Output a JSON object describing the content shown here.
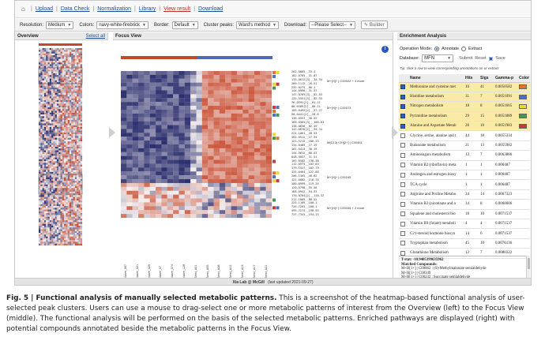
{
  "nav": {
    "home_icon": "home-icon",
    "items": [
      "Upload",
      "Data Check",
      "Normalization",
      "Library",
      "View result",
      "Download"
    ],
    "current": "View result"
  },
  "toolbar": {
    "resolution_label": "Resolution:",
    "resolution_value": "Medium",
    "colors_label": "Colors:",
    "colors_value": "navy-white-firebrick",
    "border_label": "Border:",
    "border_value": "Default",
    "cluster_label": "Cluster peaks:",
    "cluster_value": "Ward's method",
    "download_label": "Download:",
    "download_value": "--Please Select--",
    "builder_label": "Builder"
  },
  "overview": {
    "title": "Overview",
    "select_all": "Select all"
  },
  "focus": {
    "title": "Focus View",
    "condition_label": "Condition",
    "colors": {
      "navy": "#2b2f6e",
      "white": "#f4efef",
      "firebrick": "#c8472a"
    },
    "row_labels": [
      "202.0865__33.4",
      "182.0765__31.87",
      "133.0612[3]__34.34",
      "260.1112__28.51",
      "232.0275__86.1",
      "144.0996__31.57",
      "147.0769[3]__82.93",
      "132.5551[3]__82.93",
      "76.0391[2]__81.11",
      "88.0389[2]__80.11",
      "103.0492[2]__27.27",
      "90.0441[2]__28.6",
      "138.0557__30.52",
      "160.0565[3]__100.03",
      "138.0656__82.49",
      "142.0676[2]__34.34",
      "224.1001__28.53",
      "365.0512__27.94",
      "121.5212__186.23",
      "134.0489__27.19",
      "161.0413__30.19",
      "144.0612__80.53",
      "848.5057__31.51",
      "103.0582__138.38",
      "112.0573__102.63",
      "179.1527__102.79",
      "131.0464__122.88",
      "206.1365__40.82",
      "121.0882__116.75",
      "180.0999__119.24",
      "120.0798__95.56",
      "168.0942__54.53",
      "170.0764[2]__118.32",
      "211.1069__88.52",
      "223.1169__100.1",
      "726.7263__100.1",
      "495.7274__198.55",
      "727.7343__194.15"
    ],
    "annotations": [
      "M+[H]+ | C00022 + 4 more",
      "M+[H]+ | C00073",
      "M(C13)+2H[2+] | C00461",
      "M+[H]+ | C00245",
      "M+[H]+ | C00035 + 2 more"
    ],
    "sample_labels": [
      "Naive_007",
      "Naive_021",
      "Naive_025",
      "Naive_07",
      "Naive_074",
      "Naive_128",
      "Semi_A01",
      "Semi_A05",
      "Semi_A08",
      "Semi_A12",
      "Semi_A13",
      "Semi_A17",
      "Semi_A21"
    ],
    "info_icon": "info-icon"
  },
  "enrichment": {
    "title": "Enrichment Analysis",
    "mode_label": "Operation Mode:",
    "mode_annotate": "Annotate",
    "mode_extract": "Extract",
    "database_label": "Database:",
    "database_value": "MFN",
    "submit_label": "Submit",
    "reset_label": "Reset",
    "save_label": "Save",
    "tip": "Tip:  click a row to view corresponding annotations on or extract",
    "columns": [
      "Name",
      "Hits",
      "Sigs",
      "Gamma-p",
      "Color"
    ],
    "rows": [
      {
        "name": "Methionine and cysteine met",
        "hits": "16",
        "sigs": "41",
        "p": "0.0050582",
        "checked": true,
        "color": "#e8722a"
      },
      {
        "name": "Histidine metabolism",
        "hits": "11",
        "sigs": "7",
        "p": "0.0051091",
        "checked": true,
        "color": "#4a6fcb"
      },
      {
        "name": "Nitrogen metabolism",
        "hits": "18",
        "sigs": "8",
        "p": "0.0051665",
        "checked": true,
        "color": "#e6d83a"
      },
      {
        "name": "Pyrimidine metabolism",
        "hits": "29",
        "sigs": "15",
        "p": "0.0051889",
        "checked": true,
        "color": "#3f9a4c"
      },
      {
        "name": "Alanine and Aspartate Metab",
        "hits": "28",
        "sigs": "10",
        "p": "0.0051983",
        "checked": true,
        "color": "#c23a3a"
      },
      {
        "name": "Glycine, serine, alanine and t",
        "hits": "44",
        "sigs": "18",
        "p": "0.0055334",
        "checked": false,
        "color": ""
      },
      {
        "name": "Butanoate metabolism",
        "hits": "21",
        "sigs": "13",
        "p": "0.0055982",
        "checked": false,
        "color": ""
      },
      {
        "name": "Aminosugars metabolism",
        "hits": "13",
        "sigs": "7",
        "p": "0.0063886",
        "checked": false,
        "color": ""
      },
      {
        "name": "Vitamin B2 (riboflavin) meta",
        "hits": "1",
        "sigs": "1",
        "p": "0.006487",
        "checked": false,
        "color": ""
      },
      {
        "name": "Androgen and estrogen biosy",
        "hits": "1",
        "sigs": "1",
        "p": "0.006487",
        "checked": false,
        "color": ""
      },
      {
        "name": "TCA cycle",
        "hits": "1",
        "sigs": "1",
        "p": "0.006487",
        "checked": false,
        "color": ""
      },
      {
        "name": "Arginine and Proline Metabo",
        "hits": "34",
        "sigs": "14",
        "p": "0.0067323",
        "checked": false,
        "color": ""
      },
      {
        "name": "Vitamin B3 (nicotinate and n",
        "hits": "14",
        "sigs": "8",
        "p": "0.0068606",
        "checked": false,
        "color": ""
      },
      {
        "name": "Squalene and cholesterol bio",
        "hits": "18",
        "sigs": "10",
        "p": "0.0071537",
        "checked": false,
        "color": ""
      },
      {
        "name": "Vitamin B9 (folate) metaboli",
        "hits": "4",
        "sigs": "4",
        "p": "0.0071537",
        "checked": false,
        "color": ""
      },
      {
        "name": "C21-steroid hormone biosyn",
        "hits": "14",
        "sigs": "6",
        "p": "0.0071537",
        "checked": false,
        "color": ""
      },
      {
        "name": "Tryptophan metabolism",
        "hits": "45",
        "sigs": "10",
        "p": "0.0076136",
        "checked": false,
        "color": ""
      },
      {
        "name": "Glutathione Metabolism",
        "hits": "12",
        "sigs": "7",
        "p": "0.0080322",
        "checked": false,
        "color": ""
      }
    ],
    "details": [
      "T-stat: -10.9405399635962",
      "Matched Compounds:",
      "M+H[1+] | C00062 : (S)-Methylmalonate semialdehyde",
      "M+H[1+] | C00349",
      "M+H[1+] | C00232 : Succinate semialdehyde",
      "M+H[1+] | C00164 : Acetoacetate",
      "M+H[1+] | C00109 : 2-Oxobutanoate"
    ]
  },
  "footer": {
    "lab": "Xia Lab @ McGill",
    "updated": "(last updated 2021-09-27)"
  },
  "caption": {
    "figure": "Fig. 5 | Functional analysis of manually selected metabolic patterns.",
    "text": " This is a screenshot of the heatmap-based functional analysis of user-selected peak clusters. Users can use a mouse to drag-select one or more metabolic patterns of interest from the Overview (left) to the Focus View (middle). The functional analysis will be performed on the basis of the selected metabolic patterns. Enriched pathways are displayed (right) with potential compounds annotated beside the metabolic patterns in the Focus View."
  }
}
